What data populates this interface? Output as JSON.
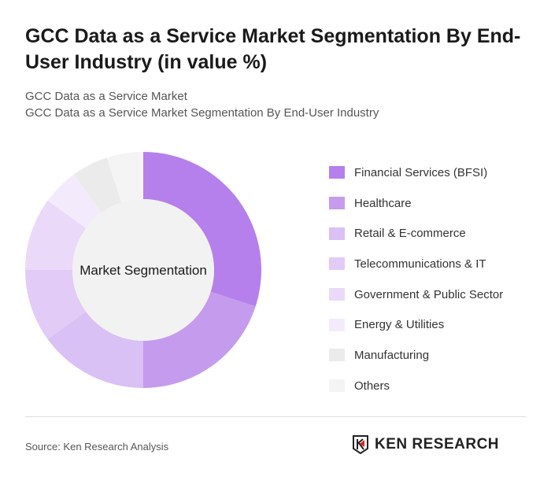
{
  "title": "GCC Data as a Service Market Segmentation By End-User Industry (in value %)",
  "subtitle1": "GCC Data as a Service Market",
  "subtitle2": "GCC Data as a Service Market Segmentation By End-User Industry",
  "source": "Source: Ken Research Analysis",
  "logo_text": "KEN RESEARCH",
  "chart_data": {
    "type": "pie",
    "donut": true,
    "center_label": "Market Segmentation",
    "legend_position": "right",
    "categories": [
      "Financial Services (BFSI)",
      "Healthcare",
      "Retail & E-commerce",
      "Telecommunications & IT",
      "Government & Public Sector",
      "Energy & Utilities",
      "Manufacturing",
      "Others"
    ],
    "values": [
      30,
      20,
      15,
      10,
      10,
      5,
      5,
      5
    ],
    "colors": [
      "#b580eb",
      "#c59bee",
      "#d9c0f5",
      "#e2cbf7",
      "#ead9f9",
      "#f3ebfc",
      "#ebebeb",
      "#f4f4f4"
    ]
  }
}
